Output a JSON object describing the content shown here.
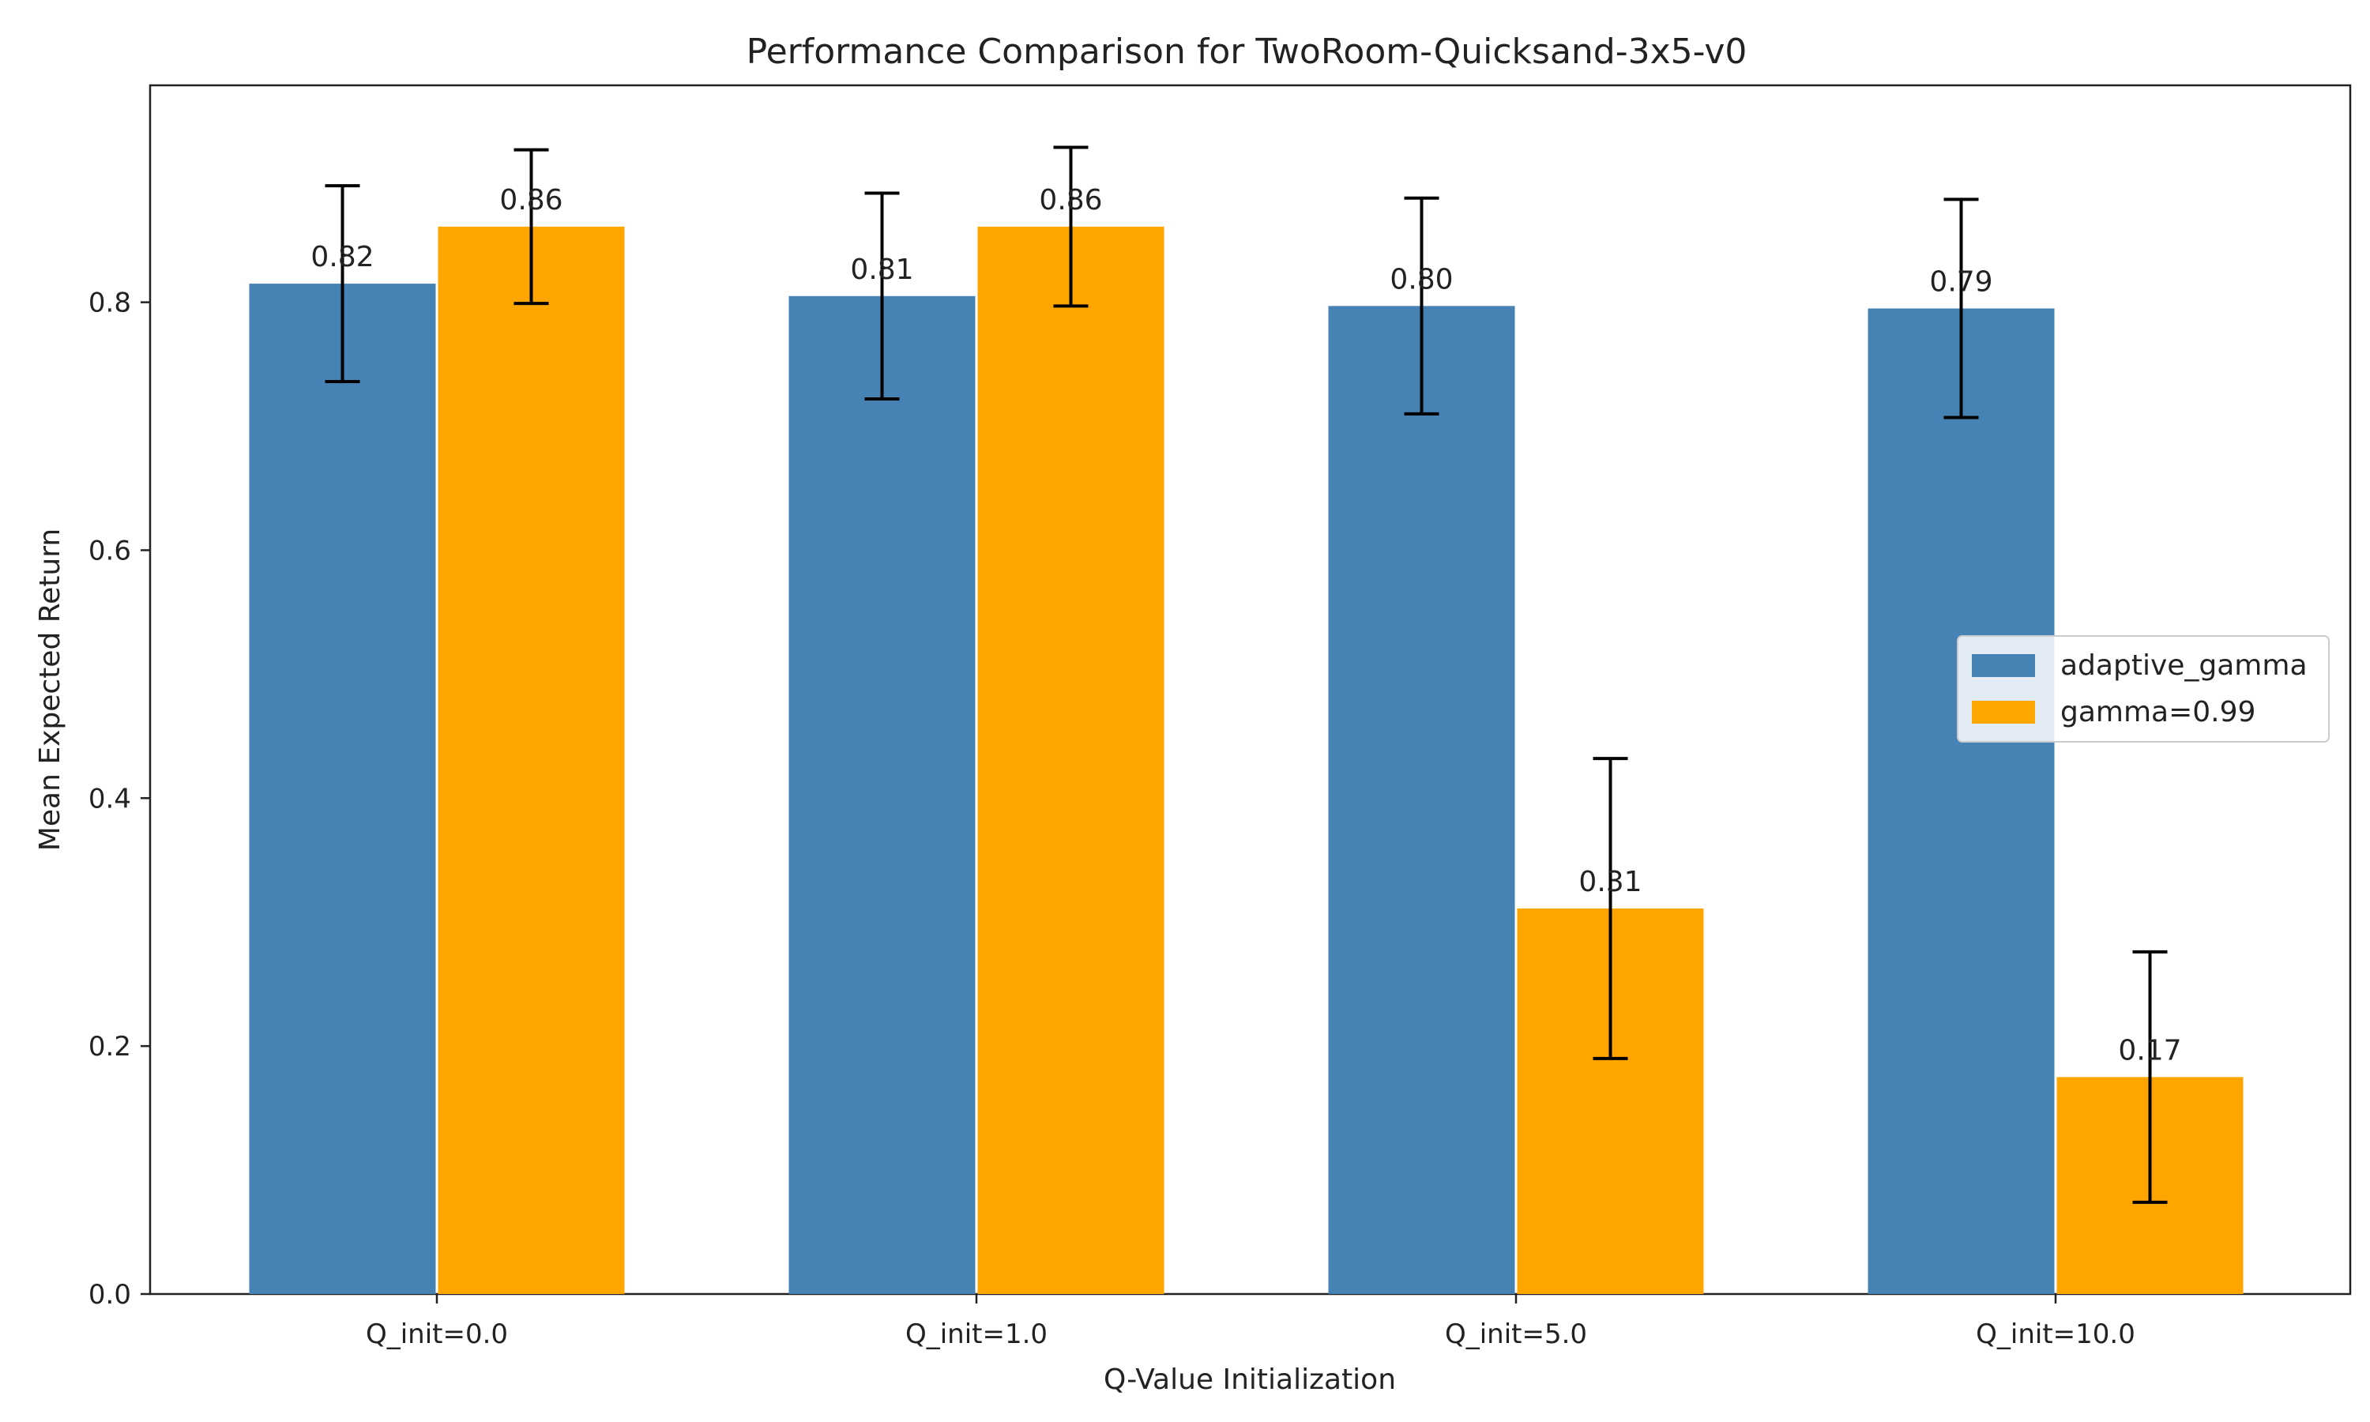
{
  "chart_data": {
    "type": "bar",
    "title": "Performance Comparison for TwoRoom-Quicksand-3x5-v0",
    "xlabel": "Q-Value Initialization",
    "ylabel": "Mean Expected Return",
    "categories": [
      "Q_init=0.0",
      "Q_init=1.0",
      "Q_init=5.0",
      "Q_init=10.0"
    ],
    "series": [
      {
        "name": "adaptive_gamma",
        "color": "#4682B4",
        "values": [
          0.815,
          0.805,
          0.797,
          0.795
        ],
        "error": [
          0.079,
          0.083,
          0.087,
          0.088
        ],
        "labels": [
          "0.82",
          "0.81",
          "0.80",
          "0.79"
        ]
      },
      {
        "name": "gamma=0.99",
        "color": "#FFA500",
        "values": [
          0.861,
          0.861,
          0.311,
          0.175
        ],
        "error": [
          0.062,
          0.064,
          0.121,
          0.101
        ],
        "labels": [
          "0.86",
          "0.86",
          "0.31",
          "0.17"
        ]
      }
    ],
    "ylim": [
      0,
      0.975
    ],
    "yticks": [
      0.0,
      0.2,
      0.4,
      0.6,
      0.8
    ],
    "ytick_labels": [
      "0.0",
      "0.2",
      "0.4",
      "0.6",
      "0.8"
    ],
    "grid": false,
    "legend_position": "center-right"
  }
}
